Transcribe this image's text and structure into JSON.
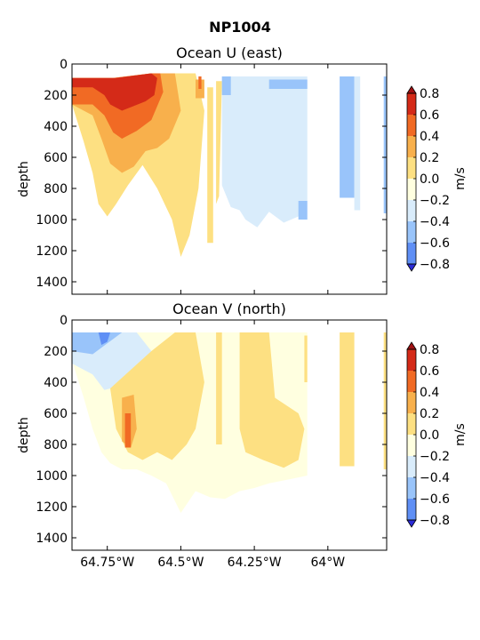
{
  "figure": {
    "suptitle": "NP1004"
  },
  "palette": {
    "levels": [
      -0.8,
      -0.6,
      -0.4,
      -0.2,
      0.0,
      0.2,
      0.4,
      0.6,
      0.8
    ],
    "colors": [
      "#3a5cf0",
      "#5f8ff5",
      "#99c4fa",
      "#d9ecfb",
      "#ffffe0",
      "#fde082",
      "#f8b04c",
      "#f16a24",
      "#d42a18"
    ],
    "under": "#2b2bd6",
    "over": "#a01012"
  },
  "chart_data": [
    {
      "type": "heatmap",
      "title": "Ocean U (east)",
      "ylabel": "depth",
      "colorbar_label": "m/s",
      "xlim": [
        -64.87,
        -63.8
      ],
      "ylim": [
        1480,
        0
      ],
      "y_ticks": [
        0,
        200,
        400,
        600,
        800,
        1000,
        1200,
        1400
      ],
      "x_ticks": [
        -64.75,
        -64.5,
        -64.25,
        -64.0
      ],
      "x_tick_labels": [
        "",
        "",
        "",
        ""
      ],
      "colorbar_ticks": [
        "0.8",
        "0.6",
        "0.4",
        "0.2",
        "0.0",
        "−0.2",
        "−0.4",
        "−0.6",
        "−0.8"
      ],
      "regions": [
        {
          "level": 0.2,
          "points": [
            [
              -64.87,
              90
            ],
            [
              -64.73,
              90
            ],
            [
              -64.6,
              60
            ],
            [
              -64.45,
              60
            ],
            [
              -64.42,
              300
            ],
            [
              -64.44,
              800
            ],
            [
              -64.47,
              1100
            ],
            [
              -64.5,
              1240
            ],
            [
              -64.53,
              1000
            ],
            [
              -64.58,
              800
            ],
            [
              -64.63,
              650
            ],
            [
              -64.68,
              780
            ],
            [
              -64.72,
              900
            ],
            [
              -64.75,
              980
            ],
            [
              -64.78,
              900
            ],
            [
              -64.8,
              700
            ],
            [
              -64.83,
              500
            ],
            [
              -64.87,
              260
            ]
          ]
        },
        {
          "level": 0.4,
          "points": [
            [
              -64.87,
              90
            ],
            [
              -64.73,
              90
            ],
            [
              -64.6,
              60
            ],
            [
              -64.52,
              60
            ],
            [
              -64.5,
              300
            ],
            [
              -64.54,
              480
            ],
            [
              -64.58,
              540
            ],
            [
              -64.62,
              560
            ],
            [
              -64.66,
              660
            ],
            [
              -64.7,
              700
            ],
            [
              -64.74,
              640
            ],
            [
              -64.77,
              480
            ],
            [
              -64.8,
              330
            ],
            [
              -64.87,
              260
            ]
          ]
        },
        {
          "level": 0.6,
          "points": [
            [
              -64.87,
              90
            ],
            [
              -64.73,
              90
            ],
            [
              -64.6,
              60
            ],
            [
              -64.57,
              60
            ],
            [
              -64.56,
              180
            ],
            [
              -64.6,
              360
            ],
            [
              -64.65,
              430
            ],
            [
              -64.7,
              480
            ],
            [
              -64.73,
              440
            ],
            [
              -64.76,
              330
            ],
            [
              -64.8,
              260
            ],
            [
              -64.87,
              260
            ]
          ]
        },
        {
          "level": 0.8,
          "points": [
            [
              -64.87,
              90
            ],
            [
              -64.72,
              90
            ],
            [
              -64.6,
              60
            ],
            [
              -64.58,
              90
            ],
            [
              -64.59,
              200
            ],
            [
              -64.62,
              240
            ],
            [
              -64.66,
              270
            ],
            [
              -64.7,
              300
            ],
            [
              -64.74,
              260
            ],
            [
              -64.76,
              200
            ],
            [
              -64.8,
              150
            ],
            [
              -64.87,
              150
            ]
          ]
        },
        {
          "level": 0.2,
          "points": [
            [
              -64.41,
              150
            ],
            [
              -64.39,
              150
            ],
            [
              -64.39,
              1150
            ],
            [
              -64.41,
              1150
            ]
          ]
        },
        {
          "level": 0.2,
          "points": [
            [
              -64.38,
              110
            ],
            [
              -64.36,
              110
            ],
            [
              -64.37,
              850
            ],
            [
              -64.38,
              900
            ]
          ]
        },
        {
          "level": 0.4,
          "points": [
            [
              -64.45,
              100
            ],
            [
              -64.42,
              100
            ],
            [
              -64.42,
              220
            ],
            [
              -64.45,
              220
            ]
          ]
        },
        {
          "level": 0.6,
          "points": [
            [
              -64.44,
              80
            ],
            [
              -64.43,
              80
            ],
            [
              -64.43,
              160
            ],
            [
              -64.44,
              160
            ]
          ]
        },
        {
          "level": -0.2,
          "points": [
            [
              -64.36,
              80
            ],
            [
              -64.07,
              80
            ],
            [
              -64.07,
              1000
            ],
            [
              -64.1,
              980
            ],
            [
              -64.15,
              1020
            ],
            [
              -64.2,
              950
            ],
            [
              -64.24,
              1050
            ],
            [
              -64.28,
              1000
            ],
            [
              -64.3,
              940
            ],
            [
              -64.33,
              920
            ],
            [
              -64.36,
              780
            ]
          ]
        },
        {
          "level": -0.4,
          "points": [
            [
              -64.36,
              80
            ],
            [
              -64.33,
              80
            ],
            [
              -64.33,
              200
            ],
            [
              -64.36,
              200
            ]
          ]
        },
        {
          "level": -0.4,
          "points": [
            [
              -64.2,
              100
            ],
            [
              -64.07,
              100
            ],
            [
              -64.07,
              160
            ],
            [
              -64.2,
              160
            ]
          ]
        },
        {
          "level": -0.4,
          "points": [
            [
              -64.1,
              880
            ],
            [
              -64.07,
              880
            ],
            [
              -64.07,
              1000
            ],
            [
              -64.1,
              1000
            ]
          ]
        },
        {
          "level": -0.4,
          "points": [
            [
              -63.96,
              80
            ],
            [
              -63.91,
              80
            ],
            [
              -63.91,
              860
            ],
            [
              -63.96,
              860
            ]
          ]
        },
        {
          "level": -0.2,
          "points": [
            [
              -63.91,
              80
            ],
            [
              -63.89,
              80
            ],
            [
              -63.89,
              940
            ],
            [
              -63.91,
              940
            ]
          ]
        },
        {
          "level": -0.4,
          "points": [
            [
              -63.81,
              80
            ],
            [
              -63.8,
              80
            ],
            [
              -63.8,
              960
            ],
            [
              -63.81,
              960
            ]
          ]
        }
      ]
    },
    {
      "type": "heatmap",
      "title": "Ocean V (north)",
      "ylabel": "depth",
      "colorbar_label": "m/s",
      "xlim": [
        -64.87,
        -63.8
      ],
      "ylim": [
        1480,
        0
      ],
      "y_ticks": [
        0,
        200,
        400,
        600,
        800,
        1000,
        1200,
        1400
      ],
      "x_ticks": [
        -64.75,
        -64.5,
        -64.25,
        -64.0
      ],
      "x_tick_labels": [
        "64.75°W",
        "64.5°W",
        "64.25°W",
        "64°W"
      ],
      "colorbar_ticks": [
        "0.8",
        "0.6",
        "0.4",
        "0.2",
        "0.0",
        "−0.2",
        "−0.4",
        "−0.6",
        "−0.8"
      ],
      "regions": [
        {
          "level": 0.0,
          "points": [
            [
              -64.87,
              80
            ],
            [
              -64.07,
              80
            ],
            [
              -64.07,
              1000
            ],
            [
              -64.12,
              1020
            ],
            [
              -64.2,
              1050
            ],
            [
              -64.25,
              1080
            ],
            [
              -64.3,
              1100
            ],
            [
              -64.35,
              1150
            ],
            [
              -64.4,
              1140
            ],
            [
              -64.45,
              1100
            ],
            [
              -64.5,
              1240
            ],
            [
              -64.55,
              1050
            ],
            [
              -64.6,
              1000
            ],
            [
              -64.65,
              960
            ],
            [
              -64.7,
              960
            ],
            [
              -64.74,
              920
            ],
            [
              -64.77,
              850
            ],
            [
              -64.8,
              700
            ],
            [
              -64.83,
              500
            ],
            [
              -64.87,
              260
            ]
          ]
        },
        {
          "level": -0.2,
          "points": [
            [
              -64.87,
              80
            ],
            [
              -64.65,
              80
            ],
            [
              -64.6,
              200
            ],
            [
              -64.63,
              350
            ],
            [
              -64.7,
              420
            ],
            [
              -64.76,
              450
            ],
            [
              -64.8,
              350
            ],
            [
              -64.87,
              280
            ]
          ]
        },
        {
          "level": -0.4,
          "points": [
            [
              -64.87,
              80
            ],
            [
              -64.7,
              80
            ],
            [
              -64.75,
              150
            ],
            [
              -64.8,
              220
            ],
            [
              -64.87,
              200
            ]
          ]
        },
        {
          "level": -0.6,
          "points": [
            [
              -64.78,
              80
            ],
            [
              -64.74,
              80
            ],
            [
              -64.75,
              140
            ],
            [
              -64.77,
              160
            ]
          ]
        },
        {
          "level": 0.2,
          "points": [
            [
              -64.74,
              440
            ],
            [
              -64.6,
              200
            ],
            [
              -64.52,
              80
            ],
            [
              -64.45,
              80
            ],
            [
              -64.42,
              400
            ],
            [
              -64.45,
              700
            ],
            [
              -64.48,
              800
            ],
            [
              -64.53,
              900
            ],
            [
              -64.58,
              850
            ],
            [
              -64.63,
              900
            ],
            [
              -64.68,
              850
            ],
            [
              -64.72,
              700
            ]
          ]
        },
        {
          "level": 0.4,
          "points": [
            [
              -64.7,
              500
            ],
            [
              -64.66,
              480
            ],
            [
              -64.65,
              700
            ],
            [
              -64.67,
              820
            ],
            [
              -64.7,
              780
            ]
          ]
        },
        {
          "level": 0.6,
          "points": [
            [
              -64.69,
              600
            ],
            [
              -64.67,
              600
            ],
            [
              -64.67,
              820
            ],
            [
              -64.69,
              820
            ]
          ]
        },
        {
          "level": 0.2,
          "points": [
            [
              -64.38,
              80
            ],
            [
              -64.36,
              80
            ],
            [
              -64.36,
              800
            ],
            [
              -64.38,
              800
            ]
          ]
        },
        {
          "level": 0.2,
          "points": [
            [
              -64.3,
              80
            ],
            [
              -64.2,
              80
            ],
            [
              -64.18,
              500
            ],
            [
              -64.1,
              600
            ],
            [
              -64.08,
              700
            ],
            [
              -64.1,
              900
            ],
            [
              -64.15,
              950
            ],
            [
              -64.22,
              900
            ],
            [
              -64.28,
              850
            ],
            [
              -64.3,
              700
            ]
          ]
        },
        {
          "level": 0.2,
          "points": [
            [
              -64.08,
              100
            ],
            [
              -64.07,
              100
            ],
            [
              -64.07,
              400
            ],
            [
              -64.08,
              400
            ]
          ]
        },
        {
          "level": 0.2,
          "points": [
            [
              -63.96,
              80
            ],
            [
              -63.91,
              80
            ],
            [
              -63.91,
              940
            ],
            [
              -63.96,
              940
            ]
          ]
        },
        {
          "level": 0.2,
          "points": [
            [
              -63.81,
              80
            ],
            [
              -63.8,
              80
            ],
            [
              -63.8,
              960
            ],
            [
              -63.81,
              960
            ]
          ]
        }
      ]
    }
  ]
}
